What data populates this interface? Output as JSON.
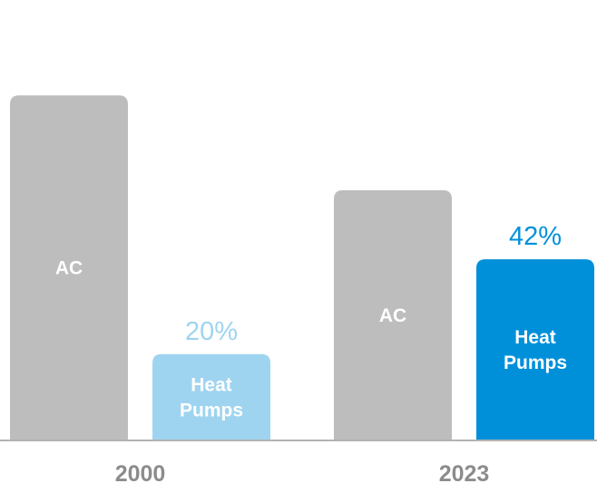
{
  "chart_data": {
    "type": "bar",
    "categories": [
      "2000",
      "2023"
    ],
    "series": [
      {
        "label": "AC",
        "values": [
          80,
          58
        ],
        "colors": [
          "#bdbdbd",
          "#bdbdbd"
        ],
        "text_color": "#ffffff"
      },
      {
        "label_lines": [
          "Heat",
          "Pumps"
        ],
        "values": [
          20,
          42
        ],
        "colors": [
          "#9fd4f0",
          "#0090da"
        ],
        "data_labels": [
          "20%",
          "42%"
        ],
        "data_label_colors": [
          "#9fd4f0",
          "#0090da"
        ],
        "text_color": "#ffffff"
      }
    ],
    "ylim": [
      0,
      100
    ],
    "axis_color": "#b3b3b3",
    "category_label_color": "#8c8c8c"
  }
}
